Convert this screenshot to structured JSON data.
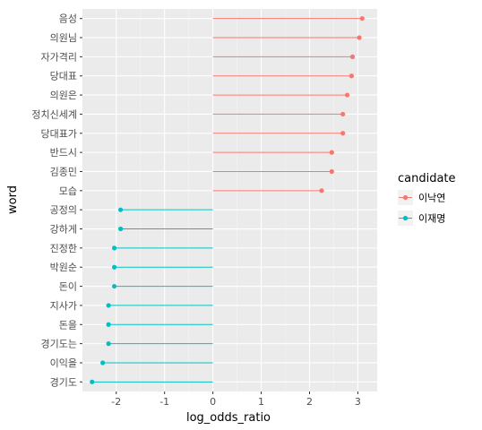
{
  "chart_data": {
    "type": "lollipop",
    "title": "",
    "xlabel": "log_odds_ratio",
    "ylabel": "word",
    "xlim": [
      -2.7,
      3.4
    ],
    "x_ticks": [
      -2,
      -1,
      0,
      1,
      2,
      3
    ],
    "x_tick_labels": [
      "-2",
      "-1",
      "0",
      "1",
      "2",
      "3"
    ],
    "grid": true,
    "legend": {
      "title": "candidate",
      "position": "right",
      "entries": [
        {
          "label": "이낙연",
          "color": "#F8766D"
        },
        {
          "label": "이재명",
          "color": "#00BFC4"
        }
      ]
    },
    "points": [
      {
        "word": "음성",
        "value": 3.09,
        "candidate": "이낙연"
      },
      {
        "word": "의원님",
        "value": 3.03,
        "candidate": "이낙연"
      },
      {
        "word": "자가격리",
        "value": 2.89,
        "candidate": "이낙연"
      },
      {
        "word": "당대표",
        "value": 2.87,
        "candidate": "이낙연"
      },
      {
        "word": "의원은",
        "value": 2.78,
        "candidate": "이낙연"
      },
      {
        "word": "정치신세계",
        "value": 2.69,
        "candidate": "이낙연"
      },
      {
        "word": "당대표가",
        "value": 2.69,
        "candidate": "이낙연"
      },
      {
        "word": "반드시",
        "value": 2.46,
        "candidate": "이낙연"
      },
      {
        "word": "김종민",
        "value": 2.46,
        "candidate": "이낙연"
      },
      {
        "word": "모습",
        "value": 2.25,
        "candidate": "이낙연"
      },
      {
        "word": "공정의",
        "value": -1.91,
        "candidate": "이재명"
      },
      {
        "word": "강하게",
        "value": -1.91,
        "candidate": "이재명"
      },
      {
        "word": "진정한",
        "value": -2.04,
        "candidate": "이재명"
      },
      {
        "word": "박원순",
        "value": -2.04,
        "candidate": "이재명"
      },
      {
        "word": "돈이",
        "value": -2.04,
        "candidate": "이재명"
      },
      {
        "word": "지사가",
        "value": -2.16,
        "candidate": "이재명"
      },
      {
        "word": "돈을",
        "value": -2.16,
        "candidate": "이재명"
      },
      {
        "word": "경기도는",
        "value": -2.16,
        "candidate": "이재명"
      },
      {
        "word": "이익을",
        "value": -2.28,
        "candidate": "이재명"
      },
      {
        "word": "경기도",
        "value": -2.5,
        "candidate": "이재명"
      }
    ]
  }
}
